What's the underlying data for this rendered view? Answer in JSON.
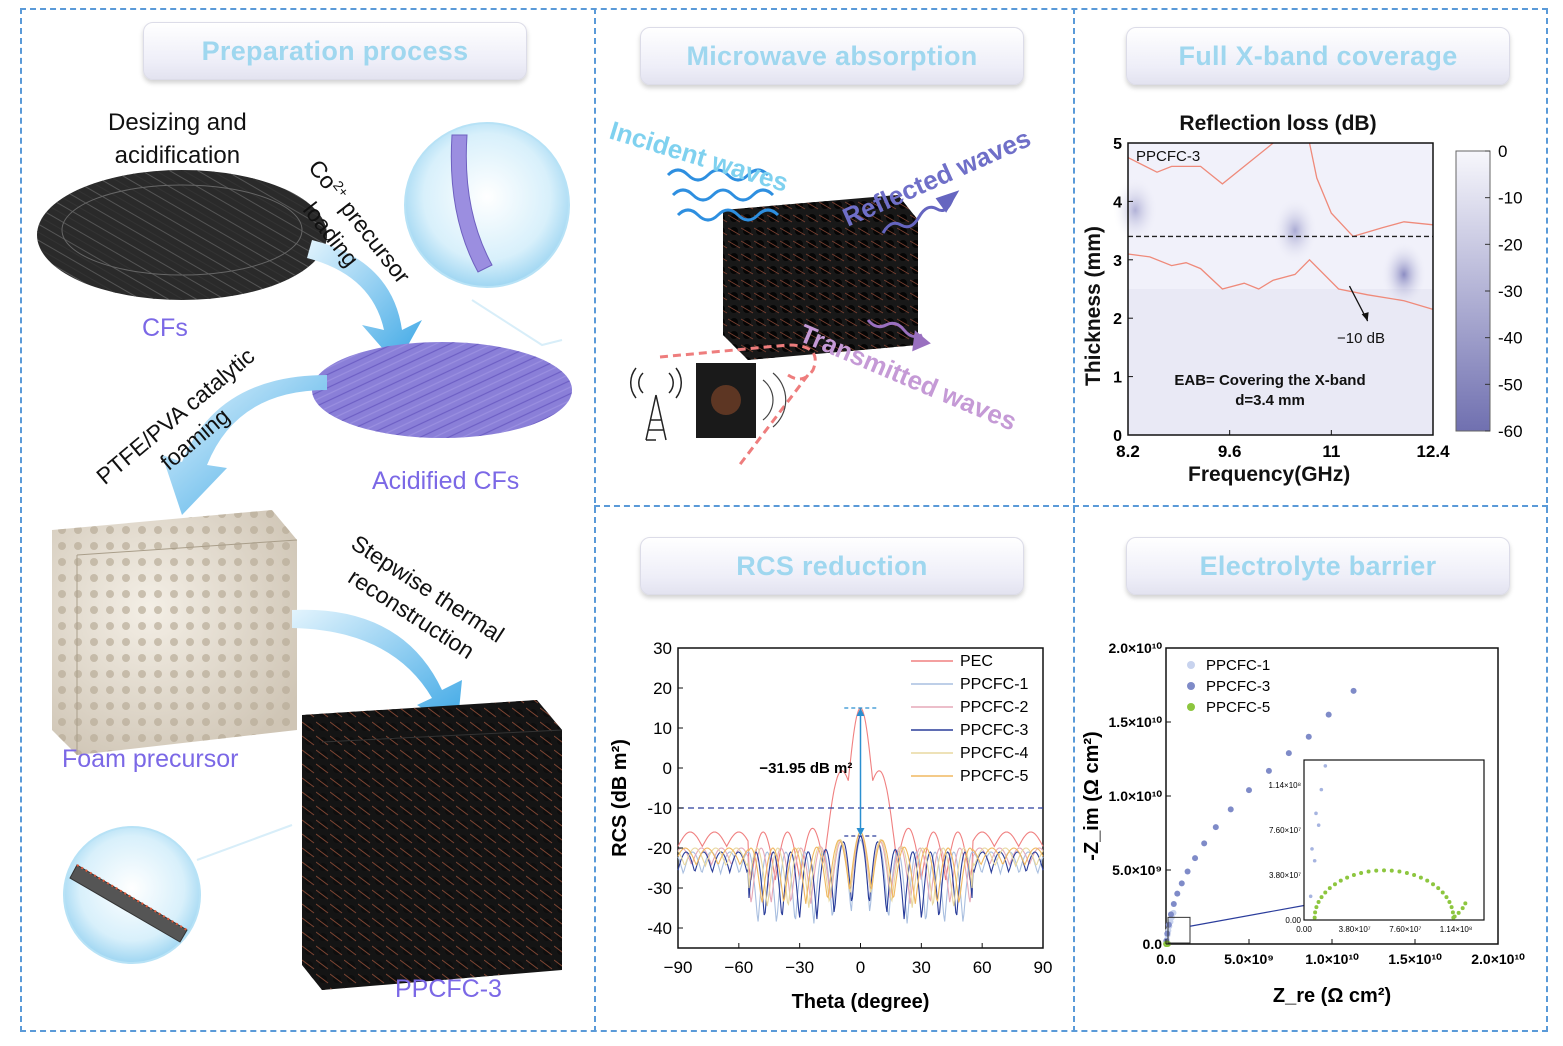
{
  "panels": {
    "preparation": {
      "title": "Preparation process",
      "step1": [
        "Desizing and",
        "acidification"
      ],
      "step2_co": "Co",
      "step2_sup": "2+",
      "step2_rest": " precursor",
      "step2_line2": "loading",
      "step3": [
        "PTFE/PVA catalytic",
        "foaming"
      ],
      "step4": [
        "Stepwise thermal",
        "reconstruction"
      ],
      "labels": {
        "cfs": "CFs",
        "acidified": "Acidified CFs",
        "foam": "Foam precursor",
        "product": "PPCFC-3"
      }
    },
    "microwave": {
      "title": "Microwave absorption",
      "incident": "Incident waves",
      "reflected": "Reflected waves",
      "transmitted": "Transmitted waves"
    },
    "xband": {
      "title": "Full X-band coverage",
      "chart_title": "Reflection loss (dB)",
      "sample": "PPCFC-3",
      "contour_label": "−10 dB",
      "eab_line1": "EAB= Covering the X-band",
      "eab_line2": "d=3.4 mm",
      "xlabel": "Frequency(GHz)",
      "ylabel": "Thickness (mm)",
      "xticks": [
        "8.2",
        "9.6",
        "11",
        "12.4"
      ],
      "yticks": [
        "0",
        "1",
        "2",
        "3",
        "4",
        "5"
      ],
      "cbar_ticks": [
        "0",
        "-10",
        "-20",
        "-30",
        "-40",
        "-50",
        "-60"
      ]
    },
    "rcs": {
      "title": "RCS reduction"
    },
    "electrolyte": {
      "title": "Electrolyte barrier"
    }
  },
  "chart_data": [
    {
      "type": "heatmap",
      "title": "Reflection loss (dB)",
      "xlabel": "Frequency(GHz)",
      "ylabel": "Thickness (mm)",
      "xlim": [
        8.2,
        12.4
      ],
      "ylim": [
        0,
        5
      ],
      "clim": [
        -60,
        0
      ],
      "dashed_thickness": 3.4,
      "hotspots": [
        {
          "x": 8.3,
          "y": 3.85,
          "value": -28
        },
        {
          "x": 10.5,
          "y": 3.5,
          "value": -32
        },
        {
          "x": 12.0,
          "y": 2.75,
          "value": -45
        }
      ],
      "contour_minus10_upper": [
        [
          8.2,
          4.75
        ],
        [
          8.6,
          4.5
        ],
        [
          8.8,
          4.6
        ],
        [
          9.2,
          4.6
        ],
        [
          9.5,
          4.3
        ],
        [
          9.9,
          4.7
        ],
        [
          10.2,
          5.0
        ]
      ],
      "contour_minus10_upper_right": [
        [
          10.7,
          5.0
        ],
        [
          10.8,
          4.4
        ],
        [
          11.0,
          3.8
        ],
        [
          11.3,
          3.4
        ],
        [
          11.7,
          3.55
        ],
        [
          12.0,
          3.65
        ],
        [
          12.4,
          3.6
        ]
      ],
      "contour_minus10_lower": [
        [
          8.2,
          3.1
        ],
        [
          8.5,
          3.05
        ],
        [
          8.8,
          2.9
        ],
        [
          9.0,
          2.95
        ],
        [
          9.2,
          2.85
        ],
        [
          9.5,
          2.5
        ],
        [
          9.8,
          2.6
        ],
        [
          10.0,
          2.5
        ],
        [
          10.2,
          2.65
        ],
        [
          10.5,
          2.75
        ],
        [
          10.7,
          3.0
        ],
        [
          11.1,
          2.5
        ],
        [
          11.5,
          2.4
        ],
        [
          12.0,
          2.3
        ],
        [
          12.4,
          2.15
        ]
      ]
    },
    {
      "type": "line",
      "xlabel": "Theta (degree)",
      "ylabel": "RCS (dB m²)",
      "xlim": [
        -90,
        90
      ],
      "ylim": [
        -45,
        30
      ],
      "xticks": [
        -90,
        -60,
        -30,
        0,
        30,
        60,
        90
      ],
      "yticks": [
        30,
        20,
        10,
        0,
        -10,
        -20,
        -30,
        -40
      ],
      "reference_line": -10,
      "annotation": "−31.95 dB m²",
      "series": [
        {
          "name": "PEC",
          "color": "#f08080",
          "base": -16,
          "peak": 15,
          "depth": 12,
          "lobe": 6.0
        },
        {
          "name": "PPCFC-1",
          "color": "#a9bfe0",
          "base": -21,
          "peak": -18,
          "depth": 18,
          "lobe": 4.6
        },
        {
          "name": "PPCFC-2",
          "color": "#e6a8b8",
          "base": -20,
          "peak": -17,
          "depth": 14,
          "lobe": 4.9
        },
        {
          "name": "PPCFC-3",
          "color": "#2a3d9a",
          "base": -21,
          "peak": -17,
          "depth": 17,
          "lobe": 4.3
        },
        {
          "name": "PPCFC-4",
          "color": "#e8d8a0",
          "base": -20,
          "peak": -16,
          "depth": 15,
          "lobe": 5.1
        },
        {
          "name": "PPCFC-5",
          "color": "#f0b860",
          "base": -20,
          "peak": -16,
          "depth": 14,
          "lobe": 5.4
        }
      ]
    },
    {
      "type": "scatter",
      "xlabel": "Z_re (Ω cm²)",
      "ylabel": "-Z_im (Ω cm²)",
      "xlim": [
        0,
        20000000000.0
      ],
      "ylim": [
        0,
        20000000000.0
      ],
      "xtick_labels": [
        "0.0",
        "5.0×10⁹",
        "1.0×10¹⁰",
        "1.5×10¹⁰",
        "2.0×10¹⁰"
      ],
      "ytick_labels": [
        "0.0",
        "5.0×10⁹",
        "1.0×10¹⁰",
        "1.5×10¹⁰",
        "2.0×10¹⁰"
      ],
      "series": [
        {
          "name": "PPCFC-1",
          "color": "#c8d3ee",
          "x": [
            20000000.0,
            50000000.0,
            90000000.0,
            140000000.0,
            200000000.0,
            270000000.0,
            350000000.0,
            450000000.0
          ],
          "y": [
            100000000.0,
            300000000.0,
            600000000.0,
            900000000.0,
            1200000000.0,
            1500000000.0,
            1800000000.0,
            2100000000.0
          ]
        },
        {
          "name": "PPCFC-3",
          "color": "#7f8bc8",
          "x": [
            20000000.0,
            80000000.0,
            170000000.0,
            300000000.0,
            470000000.0,
            680000000.0,
            950000000.0,
            1300000000.0,
            1750000000.0,
            2300000000.0,
            3000000000.0,
            3900000000.0,
            5000000000.0,
            6200000000.0,
            7400000000.0,
            8600000000.0,
            9800000000.0,
            11300000000.0
          ],
          "y": [
            200000000.0,
            700000000.0,
            1300000000.0,
            2000000000.0,
            2700000000.0,
            3400000000.0,
            4100000000.0,
            4900000000.0,
            5800000000.0,
            6800000000.0,
            7900000000.0,
            9100000000.0,
            10400000000.0,
            11700000000.0,
            12900000000.0,
            14000000000.0,
            15500000000.0,
            17100000000.0
          ]
        },
        {
          "name": "PPCFC-5",
          "color": "#8dc63f",
          "x": [
            10000000.0,
            20000000.0,
            40000000.0,
            60000000.0,
            80000000.0,
            100000000.0,
            120000000.0
          ],
          "y": [
            0.0,
            10000000.0,
            20000000.0,
            30000000.0,
            20000000.0,
            10000000.0,
            5000000.0
          ]
        }
      ],
      "inset": {
        "xtick_labels": [
          "0.00",
          "3.80×10⁷",
          "7.60×10⁷",
          "1.14×10⁸"
        ],
        "ytick_labels": [
          "0.00",
          "3.80×10⁷",
          "7.60×10⁷",
          "1.14×10⁸"
        ]
      }
    }
  ]
}
